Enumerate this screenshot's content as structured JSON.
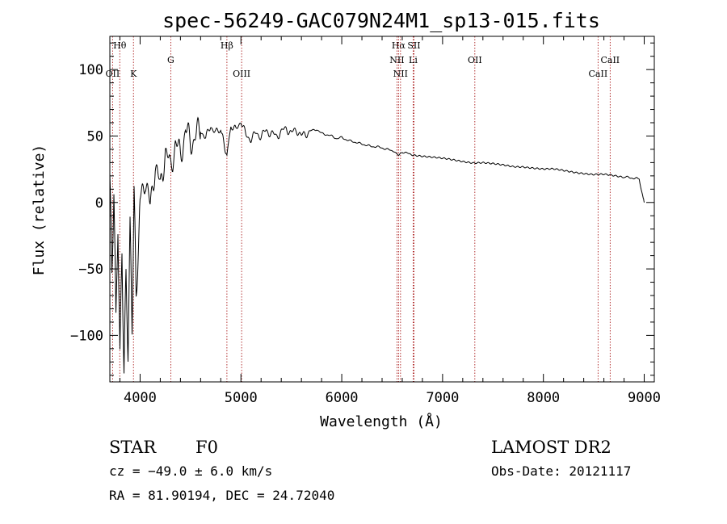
{
  "chart_data": {
    "type": "line",
    "title": "spec-56249-GAC079N24M1_sp13-015.fits",
    "xlabel": "Wavelength (Å)",
    "ylabel": "Flux (relative)",
    "xlim": [
      3700,
      9100
    ],
    "ylim": [
      -135,
      125
    ],
    "x_ticks": [
      4000,
      5000,
      6000,
      7000,
      8000,
      9000
    ],
    "y_ticks": [
      -100,
      -50,
      0,
      50,
      100
    ],
    "grid": false,
    "legend": "none",
    "series": [
      {
        "x": [
          3700,
          3720,
          3740,
          3760,
          3780,
          3800,
          3820,
          3840,
          3860,
          3880,
          3900,
          3920,
          3940,
          3960,
          3980,
          4000,
          4050,
          4100,
          4150,
          4200,
          4250,
          4300,
          4350,
          4400,
          4450,
          4500,
          4550,
          4600,
          4650,
          4700,
          4750,
          4800,
          4861,
          4900,
          4950,
          5000,
          5050,
          5100,
          5150,
          5200,
          5250,
          5300,
          5350,
          5400,
          5450,
          5500,
          5550,
          5600,
          5650,
          5700,
          5750,
          5800,
          5850,
          5900,
          5950,
          6000,
          6050,
          6100,
          6150,
          6200,
          6250,
          6300,
          6350,
          6400,
          6450,
          6500,
          6563,
          6600,
          6650,
          6700,
          6800,
          6900,
          7000,
          7100,
          7200,
          7300,
          7400,
          7500,
          7600,
          7700,
          7800,
          7900,
          8000,
          8100,
          8200,
          8300,
          8400,
          8500,
          8600,
          8700,
          8800,
          8850,
          8900,
          8950,
          8970,
          8990,
          9000
        ],
        "y": [
          10,
          -60,
          5,
          -100,
          -20,
          -125,
          -40,
          -130,
          -60,
          -110,
          -20,
          -90,
          15,
          -70,
          -30,
          0,
          20,
          -5,
          30,
          10,
          40,
          25,
          45,
          35,
          55,
          45,
          50,
          55,
          48,
          58,
          52,
          55,
          35,
          58,
          54,
          62,
          50,
          48,
          52,
          50,
          54,
          52,
          50,
          53,
          56,
          52,
          55,
          50,
          52,
          54,
          55,
          52,
          51,
          50,
          48,
          49,
          47,
          46,
          45,
          44,
          43,
          42,
          42,
          41,
          40,
          39,
          36,
          38,
          37,
          36,
          35,
          34,
          33,
          32,
          31,
          30,
          30,
          29,
          28,
          27,
          27,
          26,
          25,
          25,
          24,
          23,
          22,
          21,
          21,
          20,
          19,
          19,
          18,
          18,
          10,
          3,
          0
        ]
      }
    ],
    "lines": [
      {
        "label": "Hθ",
        "x": 3798,
        "row": 0
      },
      {
        "label": "OII",
        "x": 3727,
        "row": 2
      },
      {
        "label": "K",
        "x": 3934,
        "row": 2
      },
      {
        "label": "G",
        "x": 4304,
        "row": 1
      },
      {
        "label": "Hβ",
        "x": 4861,
        "row": 0
      },
      {
        "label": "OIII",
        "x": 5007,
        "row": 2
      },
      {
        "label": "Hα",
        "x": 6563,
        "row": 0
      },
      {
        "label": "SII",
        "x": 6716,
        "row": 0
      },
      {
        "label": "NII",
        "x": 6548,
        "row": 1
      },
      {
        "label": "Li",
        "x": 6708,
        "row": 1
      },
      {
        "label": "NII",
        "x": 6583,
        "row": 2
      },
      {
        "label": "OII",
        "x": 7320,
        "row": 1
      },
      {
        "label": "CaII",
        "x": 8662,
        "row": 1
      },
      {
        "label": "CaII",
        "x": 8542,
        "row": 2
      }
    ]
  },
  "footer": {
    "object_class": "STAR",
    "subclass": "F0",
    "survey": "LAMOST DR2",
    "cz": "cz = −49.0 ± 6.0 km/s",
    "obs_date": "Obs-Date: 20121117",
    "coords": "RA =  81.90194, DEC =  24.72040"
  }
}
